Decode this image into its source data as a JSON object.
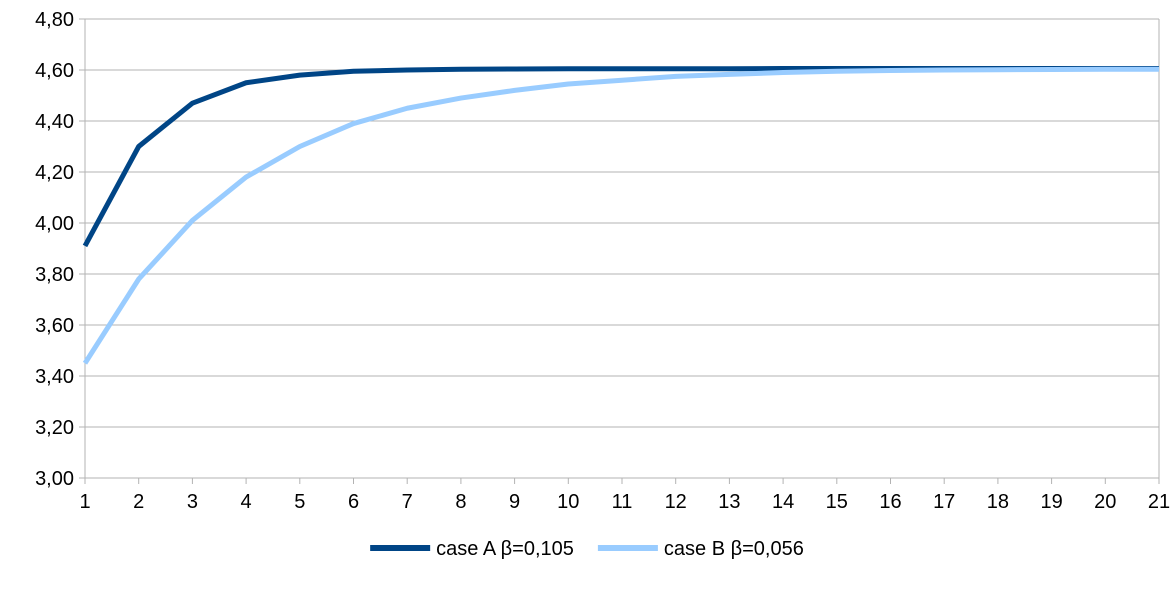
{
  "chart_data": {
    "type": "line",
    "title": "",
    "xlabel": "",
    "ylabel": "",
    "x": [
      1,
      2,
      3,
      4,
      5,
      6,
      7,
      8,
      9,
      10,
      11,
      12,
      13,
      14,
      15,
      16,
      17,
      18,
      19,
      20,
      21
    ],
    "x_tick_labels": [
      "1",
      "2",
      "3",
      "4",
      "5",
      "6",
      "7",
      "8",
      "9",
      "10",
      "11",
      "12",
      "13",
      "14",
      "15",
      "16",
      "17",
      "18",
      "19",
      "20",
      "21"
    ],
    "ylim": [
      3.0,
      4.8
    ],
    "y_tick_labels": [
      "3,00",
      "3,20",
      "3,40",
      "3,60",
      "3,80",
      "4,00",
      "4,20",
      "4,40",
      "4,60",
      "4,80"
    ],
    "y_ticks": [
      3.0,
      3.2,
      3.4,
      3.6,
      3.8,
      4.0,
      4.2,
      4.4,
      4.6,
      4.8
    ],
    "grid": "horizontal",
    "legend_position": "bottom",
    "series": [
      {
        "name": "case A β=0,105",
        "color": "#004586",
        "values": [
          3.91,
          4.3,
          4.47,
          4.55,
          4.58,
          4.595,
          4.6,
          4.603,
          4.604,
          4.605,
          4.605,
          4.605,
          4.605,
          4.606,
          4.606,
          4.606,
          4.606,
          4.606,
          4.606,
          4.606,
          4.606
        ]
      },
      {
        "name": "case B β=0,056",
        "color": "#99ccff",
        "values": [
          3.45,
          3.78,
          4.01,
          4.18,
          4.3,
          4.39,
          4.45,
          4.49,
          4.52,
          4.545,
          4.56,
          4.575,
          4.583,
          4.59,
          4.595,
          4.598,
          4.6,
          4.601,
          4.602,
          4.603,
          4.603
        ]
      }
    ]
  }
}
